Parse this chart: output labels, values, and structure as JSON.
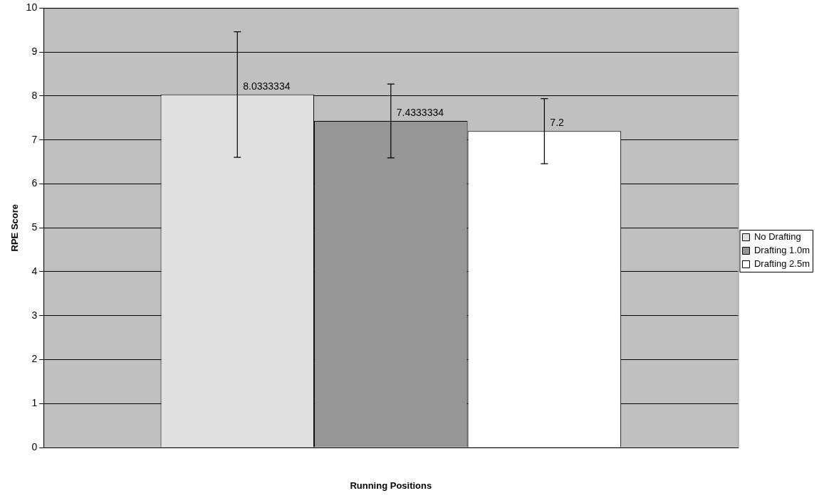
{
  "chart_data": {
    "type": "bar",
    "xlabel": "Running Positions",
    "ylabel": "RPE Score",
    "categories": [
      null
    ],
    "series": [
      {
        "name": "No Drafting",
        "color": "#e0e0e0",
        "values": [
          8.0333334
        ],
        "errors": [
          1.43
        ]
      },
      {
        "name": "Drafting 1.0m",
        "color": "#969696",
        "values": [
          7.4333334
        ],
        "errors": [
          0.84
        ]
      },
      {
        "name": "Drafting 2.5m",
        "color": "#ffffff",
        "values": [
          7.2
        ],
        "errors": [
          0.74
        ]
      }
    ],
    "ylim": [
      0,
      10
    ],
    "yticks": [
      0,
      1,
      2,
      3,
      4,
      5,
      6,
      7,
      8,
      9,
      10
    ],
    "grid": "y",
    "legend": "right",
    "data_labels": true
  }
}
